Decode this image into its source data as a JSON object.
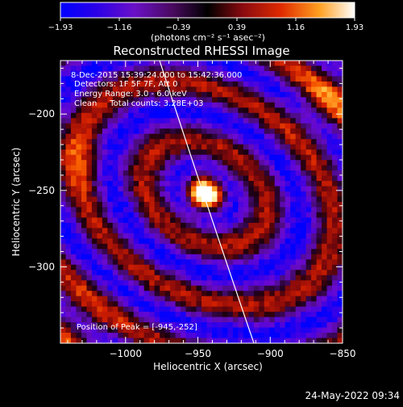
{
  "colorbar": {
    "ticks": [
      "-1.93",
      "-1.16",
      "-0.39",
      "0.39",
      "1.16",
      "1.93"
    ],
    "unit_label": "(photons cm⁻² s⁻¹ asec⁻²)"
  },
  "title": "Reconstructed RHESSI Image",
  "annotations": {
    "time_range": "8-Dec-2015 15:39:24.000 to 15:42:36.000",
    "detectors": "Detectors: 1F 5F 7F, Att 0",
    "energy": "Energy Range: 3.0 - 6.0 keV",
    "clean": "Clean     Total counts: 3.28E+03",
    "peak": "Position of Peak = [-945,-252]"
  },
  "footer_timestamp": "24-May-2022 09:34",
  "chart_data": {
    "type": "heatmap",
    "title": "Reconstructed RHESSI Image",
    "xlabel": "Heliocentric X (arcsec)",
    "ylabel": "Heliocentric Y (arcsec)",
    "xlim": [
      -1045,
      -850
    ],
    "ylim": [
      -350,
      -165
    ],
    "xticks": [
      -1000,
      -950,
      -900,
      -850
    ],
    "yticks": [
      -200,
      -250,
      -300
    ],
    "xtick_labels": [
      "−1000",
      "−950",
      "−900",
      "−850"
    ],
    "ytick_labels": [
      "−200",
      "−250",
      "−300"
    ],
    "colorbar_range": [
      -1.93,
      1.93
    ],
    "peak": {
      "x": -945,
      "y": -252
    },
    "colormap": [
      "#0000ff",
      "#3b00e6",
      "#6a0ad0",
      "#4b0c80",
      "#1a0010",
      "#8a0a0a",
      "#d42000",
      "#ff6a00",
      "#ffc040",
      "#ffffcc",
      "#ffffff"
    ]
  }
}
